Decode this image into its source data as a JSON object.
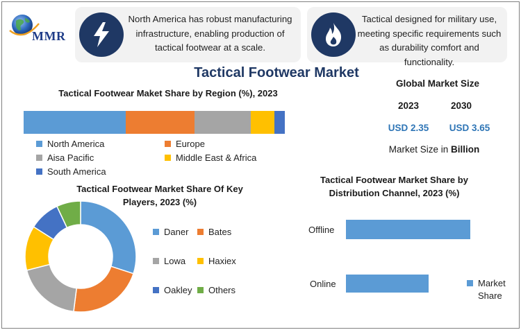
{
  "logo": {
    "text": "MMR"
  },
  "cards": [
    {
      "icon": "lightning-bolt-icon",
      "text": "North America has robust manufacturing infrastructure, enabling production of tactical footwear at a scale."
    },
    {
      "icon": "flame-icon",
      "text": "Tactical designed for military use, meeting specific requirements such as durability comfort and functionality."
    }
  ],
  "title": "Tactical Footwear Market",
  "global": {
    "title": "Global Market Size",
    "years": [
      "2023",
      "2030"
    ],
    "values": [
      "USD 2.35",
      "USD 3.65"
    ],
    "note_prefix": "Market Size in ",
    "note_unit": "Billion"
  },
  "colors": {
    "blue": "#5b9bd5",
    "orange": "#ed7d31",
    "gray": "#a5a5a5",
    "yellow": "#ffc000",
    "darkblue": "#4472c4",
    "green": "#70ad47",
    "navy": "#1f3864"
  },
  "chart_data": [
    {
      "type": "bar",
      "orientation": "horizontal-stacked",
      "title": "Tactical Footwear Maket Share by Region (%), 2023",
      "series": [
        {
          "name": "North America",
          "values": [
            39
          ],
          "color": "#5b9bd5"
        },
        {
          "name": "Europe",
          "values": [
            26.5
          ],
          "color": "#ed7d31"
        },
        {
          "name": "Aisa Pacific",
          "values": [
            21.5
          ],
          "color": "#a5a5a5"
        },
        {
          "name": "Middle East & Africa",
          "values": [
            9
          ],
          "color": "#ffc000"
        },
        {
          "name": "South America",
          "values": [
            4
          ],
          "color": "#4472c4"
        }
      ],
      "legend": "bottom"
    },
    {
      "type": "pie",
      "variant": "doughnut",
      "title": "Tactical Footwear Market Share Of Key Players, 2023 (%)",
      "categories": [
        "Daner",
        "Bates",
        "Lowa",
        "Haxiex",
        "Oakley",
        "Others"
      ],
      "values": [
        30,
        22,
        19,
        13,
        9,
        7
      ],
      "colors": [
        "#5b9bd5",
        "#ed7d31",
        "#a5a5a5",
        "#ffc000",
        "#4472c4",
        "#70ad47"
      ],
      "legend": "right"
    },
    {
      "type": "bar",
      "orientation": "horizontal",
      "title": "Tactical Footwear Market Share by Distribution Channel, 2023 (%)",
      "categories": [
        "Offline",
        "Online"
      ],
      "series": [
        {
          "name": "Market Share",
          "values": [
            60,
            40
          ],
          "color": "#5b9bd5"
        }
      ],
      "xlim": [
        0,
        100
      ],
      "grid": false,
      "legend": "right"
    }
  ]
}
